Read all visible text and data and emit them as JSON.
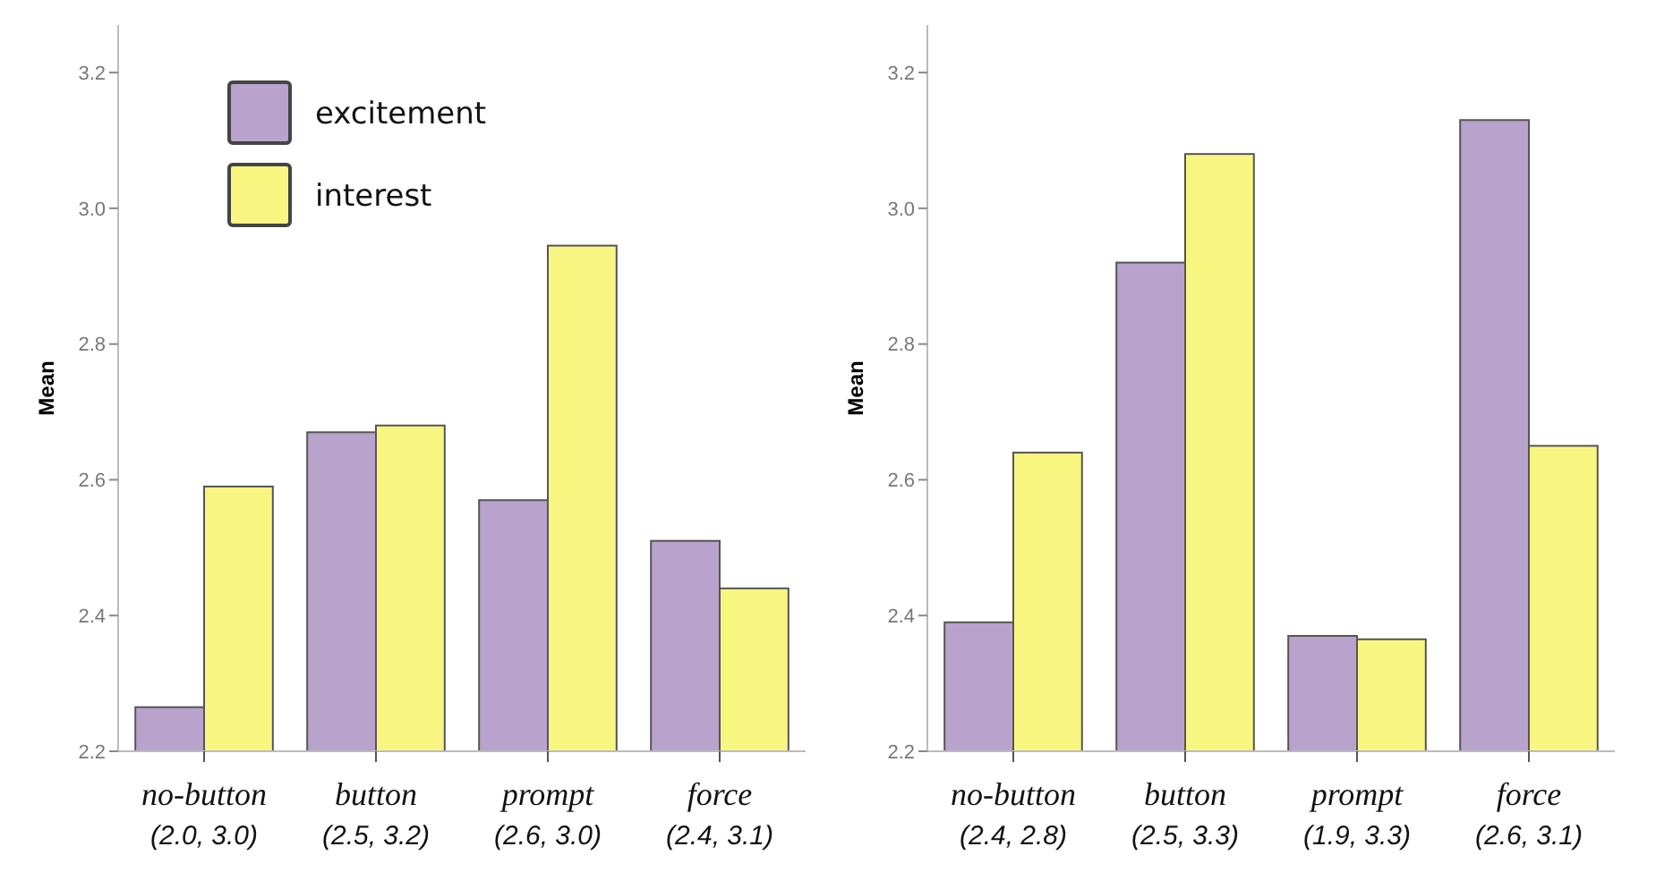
{
  "chart_data": [
    {
      "type": "bar",
      "ylabel": "Mean",
      "categories": [
        "no-button\n(2.0, 3.0)",
        "button\n(2.5, 3.2)",
        "prompt\n(2.6, 3.0)",
        "force\n(2.4, 3.1)"
      ],
      "series": [
        {
          "name": "excitement",
          "color": "#b9a2cc",
          "values": [
            2.265,
            2.67,
            2.57,
            2.51
          ]
        },
        {
          "name": "interest",
          "color": "#f9f581",
          "values": [
            2.59,
            2.68,
            2.945,
            2.44
          ]
        }
      ],
      "ylim": [
        2.2,
        3.27
      ],
      "yticks": [
        {
          "value": 2.2,
          "label": "2.2"
        },
        {
          "value": 2.4,
          "label": "2.4"
        },
        {
          "value": 2.6,
          "label": "2.6"
        },
        {
          "value": 2.8,
          "label": "2.8"
        },
        {
          "value": 3.0,
          "label": "3.0"
        },
        {
          "value": 3.2,
          "label": "3.2"
        }
      ],
      "legend": "top left",
      "grid": false
    },
    {
      "type": "bar",
      "ylabel": "Mean",
      "categories": [
        "no-button\n(2.4, 2.8)",
        "button\n(2.5, 3.3)",
        "prompt\n(1.9, 3.3)",
        "force\n(2.6, 3.1)"
      ],
      "series": [
        {
          "color": "#b9a2cc",
          "values": [
            2.39,
            2.92,
            2.37,
            3.13
          ]
        },
        {
          "color": "#f9f581",
          "values": [
            2.64,
            3.08,
            2.365,
            2.65
          ]
        }
      ],
      "ylim": [
        2.2,
        3.27
      ],
      "yticks": [
        {
          "value": 2.2,
          "label": "2.2"
        },
        {
          "value": 2.4,
          "label": "2.4"
        },
        {
          "value": 2.6,
          "label": "2.6"
        },
        {
          "value": 2.8,
          "label": "2.8"
        },
        {
          "value": 3.0,
          "label": "3.0"
        },
        {
          "value": 3.2,
          "label": "3.2"
        }
      ],
      "legend": false,
      "grid": false
    }
  ]
}
